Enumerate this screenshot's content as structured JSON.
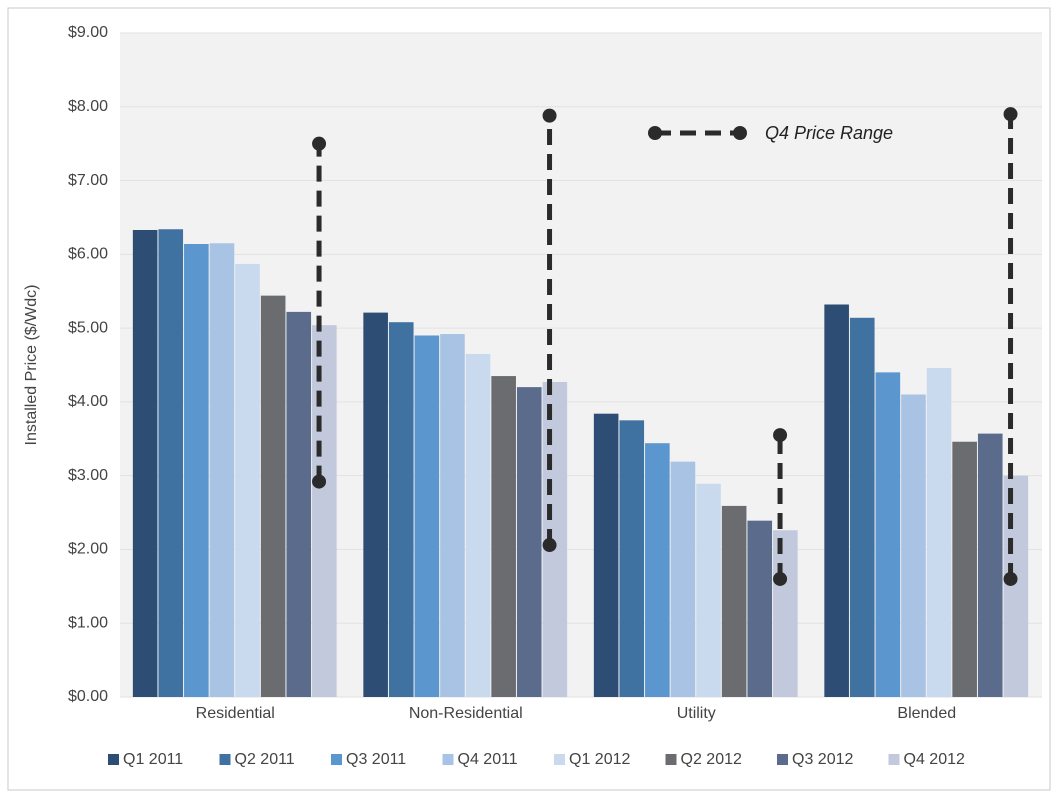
{
  "chart_data": {
    "type": "bar",
    "y_label": "Installed Price ($/Wdc)",
    "categories": [
      "Residential",
      "Non-Residential",
      "Utility",
      "Blended"
    ],
    "series": [
      {
        "name": "Q1 2011",
        "color": "#2e4d74",
        "values": [
          6.33,
          5.21,
          3.84,
          5.32
        ]
      },
      {
        "name": "Q2 2011",
        "color": "#3f71a1",
        "values": [
          6.34,
          5.08,
          3.75,
          5.14
        ]
      },
      {
        "name": "Q3 2011",
        "color": "#5b96cf",
        "values": [
          6.14,
          4.9,
          3.44,
          4.4
        ]
      },
      {
        "name": "Q4 2011",
        "color": "#a9c3e4",
        "values": [
          6.15,
          4.92,
          3.19,
          4.1
        ]
      },
      {
        "name": "Q1 2012",
        "color": "#c9daef",
        "values": [
          5.87,
          4.65,
          2.89,
          4.46
        ]
      },
      {
        "name": "Q2 2012",
        "color": "#6b6c6f",
        "values": [
          5.44,
          4.35,
          2.59,
          3.46
        ]
      },
      {
        "name": "Q3 2012",
        "color": "#5a6b8c",
        "values": [
          5.22,
          4.2,
          2.39,
          3.57
        ]
      },
      {
        "name": "Q4 2012",
        "color": "#c3c9dc",
        "values": [
          5.04,
          4.27,
          2.26,
          3.0
        ]
      }
    ],
    "range": {
      "name": "Q4 Price Range",
      "color": "#2b2b2b",
      "low": [
        2.92,
        2.06,
        1.6,
        1.6
      ],
      "high": [
        7.5,
        7.88,
        3.55,
        7.9
      ]
    },
    "ylim": [
      0,
      9
    ],
    "yticks": [
      {
        "value": 0,
        "label": "$0.00"
      },
      {
        "value": 1,
        "label": "$1.00"
      },
      {
        "value": 2,
        "label": "$2.00"
      },
      {
        "value": 3,
        "label": "$3.00"
      },
      {
        "value": 4,
        "label": "$4.00"
      },
      {
        "value": 5,
        "label": "$5.00"
      },
      {
        "value": 6,
        "label": "$6.00"
      },
      {
        "value": 7,
        "label": "$7.00"
      },
      {
        "value": 8,
        "label": "$8.00"
      },
      {
        "value": 9,
        "label": "$9.00"
      }
    ],
    "grid": true
  }
}
